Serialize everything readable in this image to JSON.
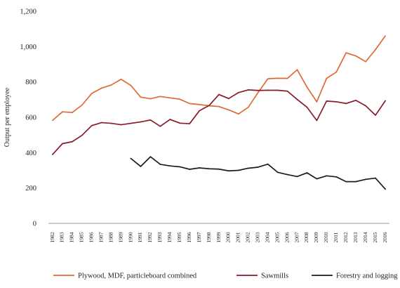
{
  "chart_data": {
    "type": "line",
    "title": "",
    "xlabel": "",
    "ylabel": "Output per employee",
    "ylim": [
      0,
      1200
    ],
    "yticks": [
      0,
      200,
      400,
      600,
      800,
      1000,
      1200
    ],
    "ytick_labels": [
      "0",
      "200",
      "400",
      "600",
      "800",
      "1,000",
      "1,200"
    ],
    "grid": false,
    "legend_position": "bottom",
    "x": [
      "1982",
      "1983",
      "1984",
      "1985",
      "1986",
      "1987",
      "1988",
      "1989",
      "1990",
      "1991",
      "1992",
      "1993",
      "1994",
      "1995",
      "1996",
      "1997",
      "1998",
      "1999",
      "2000",
      "2001",
      "2002",
      "2003",
      "2004",
      "2005",
      "2006",
      "2007",
      "2008",
      "2009",
      "2010",
      "2011",
      "2012",
      "2013",
      "2014",
      "2015",
      "2016"
    ],
    "series": [
      {
        "name": "Plywood, MDF, particleboard combined",
        "color": "#e06a35",
        "values": [
          583,
          631,
          627,
          669,
          735,
          765,
          783,
          815,
          780,
          714,
          705,
          718,
          710,
          702,
          678,
          672,
          665,
          661,
          642,
          619,
          657,
          740,
          818,
          821,
          820,
          869,
          771,
          688,
          820,
          856,
          965,
          947,
          915,
          983,
          1060
        ]
      },
      {
        "name": "Sawmills",
        "color": "#8b1a2b",
        "values": [
          390,
          451,
          462,
          498,
          553,
          570,
          566,
          558,
          566,
          574,
          585,
          549,
          588,
          567,
          564,
          637,
          667,
          729,
          706,
          740,
          755,
          752,
          753,
          753,
          748,
          701,
          657,
          582,
          692,
          688,
          678,
          696,
          665,
          612,
          693
        ]
      },
      {
        "name": "Forestry and logging",
        "color": "#1c1c1c",
        "values": [
          null,
          null,
          null,
          null,
          null,
          null,
          null,
          null,
          367,
          322,
          377,
          334,
          325,
          320,
          306,
          314,
          309,
          307,
          297,
          300,
          312,
          318,
          335,
          289,
          276,
          265,
          286,
          252,
          269,
          263,
          236,
          236,
          249,
          256,
          194
        ]
      }
    ]
  }
}
